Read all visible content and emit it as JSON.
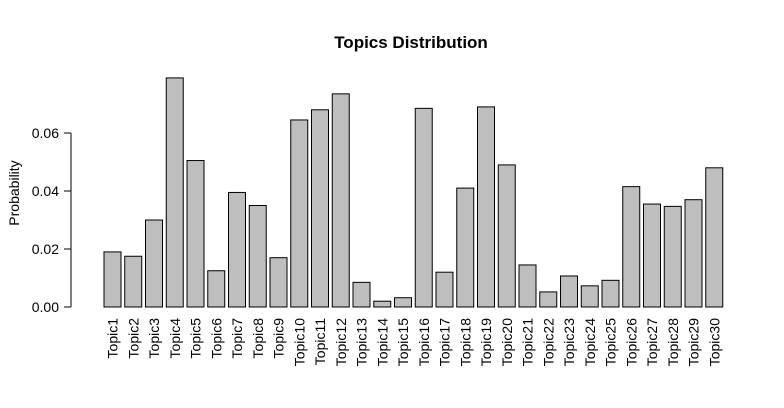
{
  "chart_data": {
    "type": "bar",
    "title": "Topics Distribution",
    "xlabel": "",
    "ylabel": "Probability",
    "ylim": [
      0,
      0.08
    ],
    "yticks": [
      "0.00",
      "0.02",
      "0.04",
      "0.06"
    ],
    "categories": [
      "Topic1",
      "Topic2",
      "Topic3",
      "Topic4",
      "Topic5",
      "Topic6",
      "Topic7",
      "Topic8",
      "Topic9",
      "Topic10",
      "Topic11",
      "Topic12",
      "Topic13",
      "Topic14",
      "Topic15",
      "Topic16",
      "Topic17",
      "Topic18",
      "Topic19",
      "Topic20",
      "Topic21",
      "Topic22",
      "Topic23",
      "Topic24",
      "Topic25",
      "Topic26",
      "Topic27",
      "Topic28",
      "Topic29",
      "Topic30"
    ],
    "values": [
      0.019,
      0.0175,
      0.03,
      0.079,
      0.0505,
      0.0125,
      0.0395,
      0.035,
      0.017,
      0.0645,
      0.068,
      0.0735,
      0.0085,
      0.002,
      0.0032,
      0.0685,
      0.012,
      0.041,
      0.069,
      0.049,
      0.0145,
      0.0052,
      0.0107,
      0.0073,
      0.0092,
      0.0415,
      0.0355,
      0.0347,
      0.037,
      0.048
    ],
    "bar_color": "#bebebe",
    "grid": false,
    "legend": "none"
  }
}
